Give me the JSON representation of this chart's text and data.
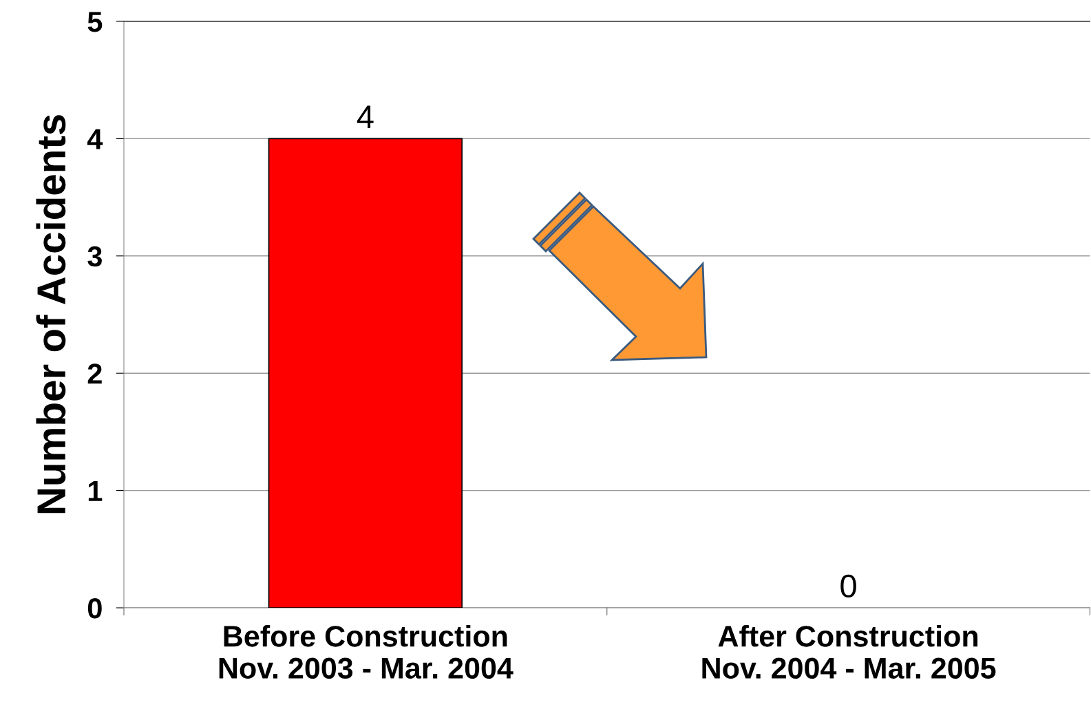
{
  "chart_data": {
    "type": "bar",
    "ylabel": "Number of Accidents",
    "categories": [
      "Before Construction\nNov. 2003 - Mar. 2004",
      "After Construction\nNov. 2004 - Mar. 2005"
    ],
    "values": [
      4,
      0
    ],
    "colors": [
      "#ff0000",
      "#ff0000"
    ],
    "ylim": [
      0,
      5
    ],
    "yticks": [
      0,
      1,
      2,
      3,
      4,
      5
    ],
    "grid": "y",
    "data_labels": true
  }
}
